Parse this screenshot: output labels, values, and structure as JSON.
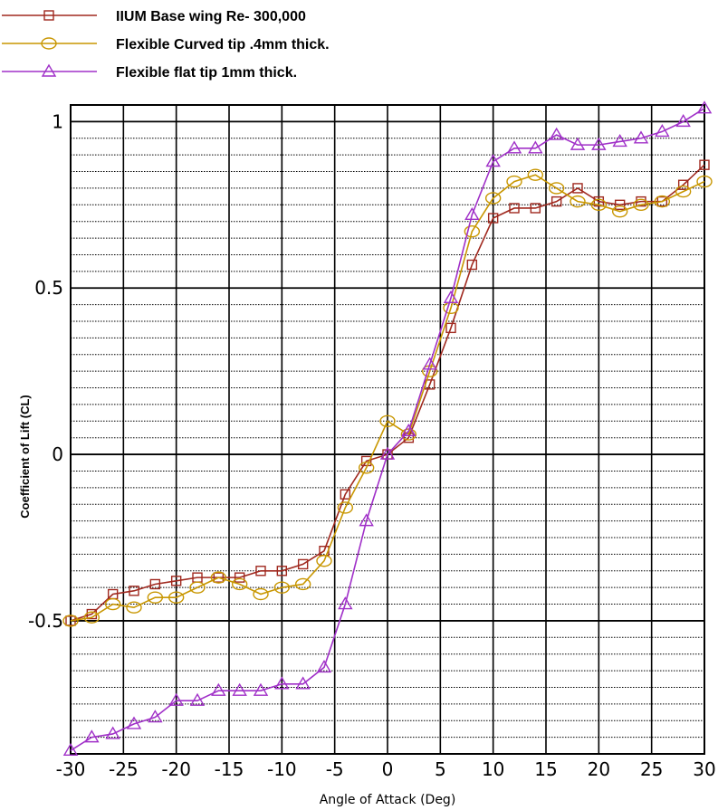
{
  "chart_data": {
    "type": "line",
    "title": "",
    "xlabel": "Angle of Attack (Deg)",
    "ylabel": "Coefficient of Lift (CL)",
    "xlim": [
      -30,
      30
    ],
    "ylim": [
      -0.9,
      1.05
    ],
    "grid": true,
    "legend_position": "top-left",
    "x_ticks": [
      -30,
      -25,
      -20,
      -15,
      -10,
      -5,
      0,
      5,
      10,
      15,
      20,
      25,
      30
    ],
    "x_tick_labels": [
      "-30",
      "-25",
      "-20",
      "-15",
      "-10",
      "-5",
      "0",
      "5",
      "10",
      "15",
      "20",
      "25",
      "30"
    ],
    "y_ticks": [
      -0.5,
      0,
      0.5,
      1
    ],
    "y_tick_labels": [
      "-0.5",
      "0",
      "0.5",
      "1"
    ],
    "series": [
      {
        "name": "IIUM Base wing    Re- 300,000",
        "color": "#a0291f",
        "marker": "square",
        "x": [
          -30,
          -28,
          -26,
          -24,
          -22,
          -20,
          -18,
          -16,
          -14,
          -12,
          -10,
          -8,
          -6,
          -4,
          -2,
          0,
          2,
          4,
          6,
          8,
          10,
          12,
          14,
          16,
          18,
          20,
          22,
          24,
          26,
          28,
          30
        ],
        "y": [
          -0.5,
          -0.48,
          -0.42,
          -0.41,
          -0.39,
          -0.38,
          -0.37,
          -0.37,
          -0.37,
          -0.35,
          -0.35,
          -0.33,
          -0.29,
          -0.12,
          -0.02,
          0.0,
          0.05,
          0.21,
          0.38,
          0.57,
          0.71,
          0.74,
          0.74,
          0.76,
          0.8,
          0.76,
          0.75,
          0.76,
          0.76,
          0.81,
          0.87
        ]
      },
      {
        "name": "Flexible Curved tip .4mm thick.",
        "color": "#c89600",
        "marker": "circle",
        "x": [
          -30,
          -28,
          -26,
          -24,
          -22,
          -20,
          -18,
          -16,
          -14,
          -12,
          -10,
          -8,
          -6,
          -4,
          -2,
          0,
          2,
          4,
          6,
          8,
          10,
          12,
          14,
          16,
          18,
          20,
          22,
          24,
          26,
          28,
          30
        ],
        "y": [
          -0.5,
          -0.49,
          -0.45,
          -0.46,
          -0.43,
          -0.43,
          -0.4,
          -0.37,
          -0.39,
          -0.42,
          -0.4,
          -0.39,
          -0.32,
          -0.16,
          -0.04,
          0.1,
          0.06,
          0.25,
          0.44,
          0.67,
          0.77,
          0.82,
          0.84,
          0.8,
          0.76,
          0.75,
          0.73,
          0.75,
          0.76,
          0.79,
          0.82
        ]
      },
      {
        "name": "Flexible flat tip 1mm thick.",
        "color": "#a030c8",
        "marker": "triangle",
        "x": [
          -30,
          -28,
          -26,
          -24,
          -22,
          -20,
          -18,
          -16,
          -14,
          -12,
          -10,
          -8,
          -6,
          -4,
          -2,
          0,
          2,
          4,
          6,
          8,
          10,
          12,
          14,
          16,
          18,
          20,
          22,
          24,
          26,
          28,
          30
        ],
        "y": [
          -0.89,
          -0.85,
          -0.84,
          -0.81,
          -0.79,
          -0.74,
          -0.74,
          -0.71,
          -0.71,
          -0.71,
          -0.69,
          -0.69,
          -0.64,
          -0.45,
          -0.2,
          0.0,
          0.07,
          0.27,
          0.47,
          0.72,
          0.88,
          0.92,
          0.92,
          0.96,
          0.93,
          0.93,
          0.94,
          0.95,
          0.97,
          1.0,
          1.04
        ]
      }
    ]
  }
}
